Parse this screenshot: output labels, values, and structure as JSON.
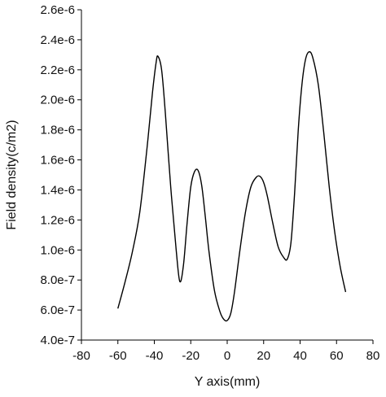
{
  "chart_data": {
    "type": "line",
    "title": "",
    "xlabel": "Y axis(mm)",
    "ylabel": "Field density(c/m2)",
    "xlim": [
      -80,
      80
    ],
    "ylim": [
      4e-07,
      2.6e-06
    ],
    "x_ticks": [
      -80,
      -60,
      -40,
      -20,
      0,
      20,
      40,
      60,
      80
    ],
    "x_tick_labels": [
      "-80",
      "-60",
      "-40",
      "-20",
      "0",
      "20",
      "40",
      "60",
      "80"
    ],
    "y_ticks": [
      4e-07,
      6e-07,
      8e-07,
      1e-06,
      1.2e-06,
      1.4e-06,
      1.6e-06,
      1.8e-06,
      2e-06,
      2.2e-06,
      2.4e-06,
      2.6e-06
    ],
    "y_tick_labels": [
      "4.0e-7",
      "6.0e-7",
      "8.0e-7",
      "1.0e-6",
      "1.2e-6",
      "1.4e-6",
      "1.6e-6",
      "1.8e-6",
      "2.0e-6",
      "2.2e-6",
      "2.4e-6",
      "2.6e-6"
    ],
    "grid": false,
    "legend": "none",
    "series": [
      {
        "color": "#000000",
        "x": [
          -60,
          -56,
          -52,
          -48,
          -44,
          -41,
          -39,
          -38,
          -36,
          -34,
          -31,
          -28,
          -26,
          -24,
          -22,
          -20,
          -18,
          -16,
          -14,
          -12,
          -10,
          -7,
          -4,
          -2,
          0,
          2,
          4,
          7,
          10,
          13,
          16,
          18,
          20,
          22,
          25,
          28,
          31,
          33,
          35,
          37,
          39,
          41,
          43,
          45,
          47,
          50,
          53,
          56,
          59,
          62,
          65
        ],
        "y": [
          6.1e-07,
          7.9e-07,
          9.9e-07,
          1.25e-06,
          1.68e-06,
          2.05e-06,
          2.25e-06,
          2.29e-06,
          2.2e-06,
          1.92e-06,
          1.42e-06,
          1e-06,
          7.9e-07,
          9e-07,
          1.18e-06,
          1.42e-06,
          1.52e-06,
          1.53e-06,
          1.43e-06,
          1.22e-06,
          9.9e-07,
          7.3e-07,
          5.9e-07,
          5.4e-07,
          5.3e-07,
          5.8e-07,
          7.2e-07,
          1e-06,
          1.25e-06,
          1.42e-06,
          1.485e-06,
          1.49e-06,
          1.45e-06,
          1.36e-06,
          1.18e-06,
          1.02e-06,
          9.5e-07,
          9.4e-07,
          1.05e-06,
          1.38e-06,
          1.8e-06,
          2.1e-06,
          2.27e-06,
          2.32e-06,
          2.28e-06,
          2.1e-06,
          1.78e-06,
          1.42e-06,
          1.12e-06,
          8.9e-07,
          7.2e-07
        ]
      }
    ]
  }
}
